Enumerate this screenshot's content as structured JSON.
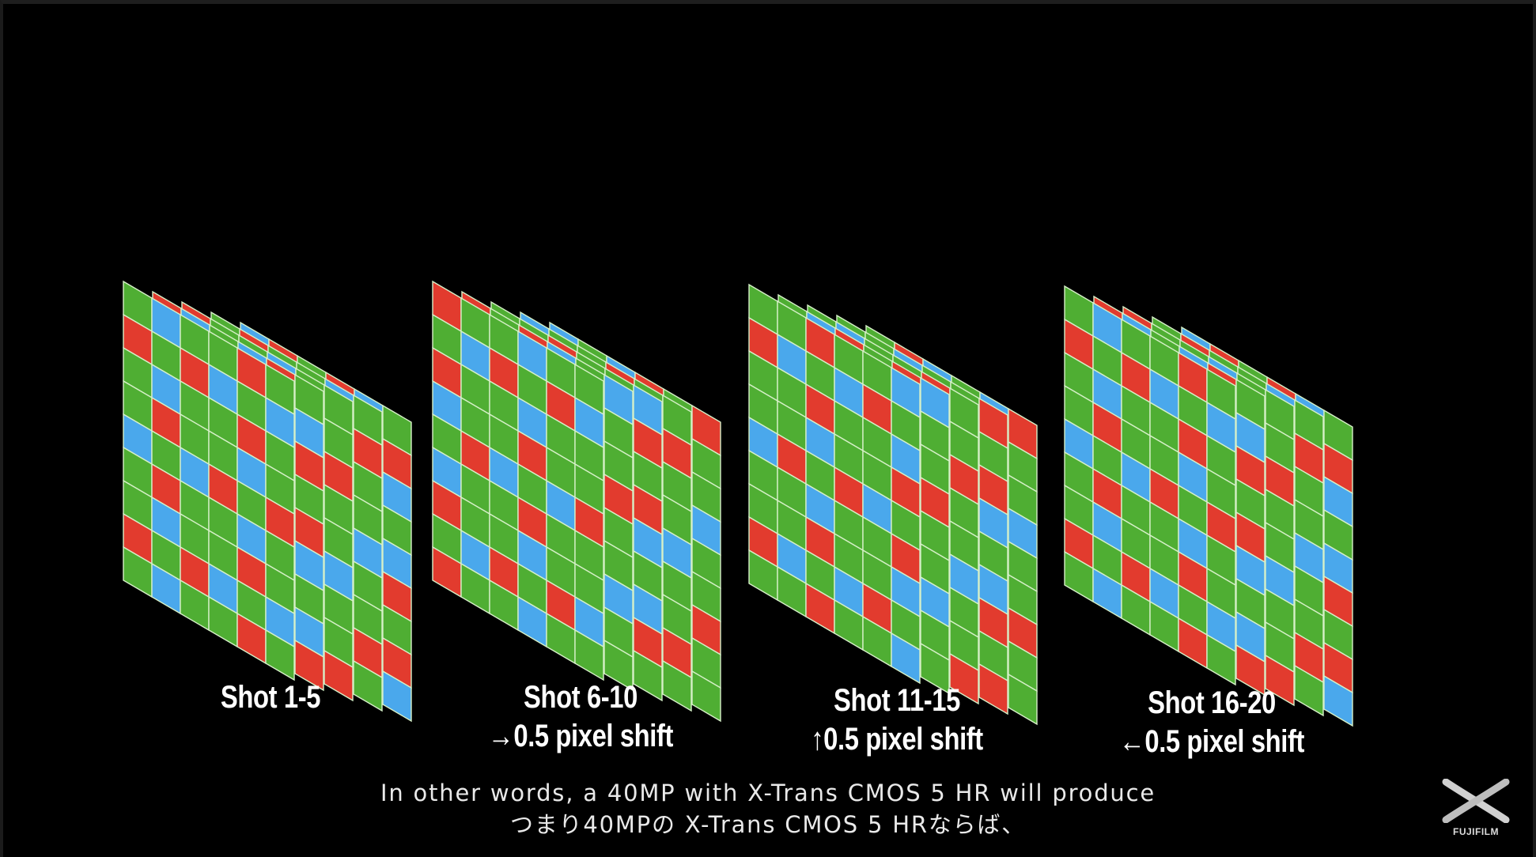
{
  "colors": {
    "background": "#000000",
    "green": "#4fae33",
    "red": "#e23b2e",
    "blue": "#4aa8ec",
    "cell_border": "#d6f0c8",
    "text": "#ffffff"
  },
  "pattern_legend": {
    "G": "green",
    "R": "red",
    "B": "blue"
  },
  "xtrans_pattern": [
    "GBGGRG",
    "RGRBGB",
    "GBGGRG",
    "GRGGBG",
    "BGBRGR",
    "GRGGBG"
  ],
  "groups": [
    {
      "label_line1": "Shot 1-5",
      "label_line2": "",
      "shift_direction": "none"
    },
    {
      "label_line1": "Shot 6-10",
      "label_line2": "→0.5 pixel shift",
      "shift_direction": "right"
    },
    {
      "label_line1": "Shot 11-15",
      "label_line2": "↑0.5 pixel shift",
      "shift_direction": "up"
    },
    {
      "label_line1": "Shot 16-20",
      "label_line2": "←0.5 pixel shift",
      "shift_direction": "left"
    }
  ],
  "subtitle": {
    "english": "In other words, a 40MP with X-Trans CMOS 5 HR will produce",
    "japanese": "つまり40MPの X-Trans CMOS 5 HRならば、"
  },
  "logo": {
    "icon": "fujifilm-x-logo",
    "text": "FUJIFILM"
  }
}
